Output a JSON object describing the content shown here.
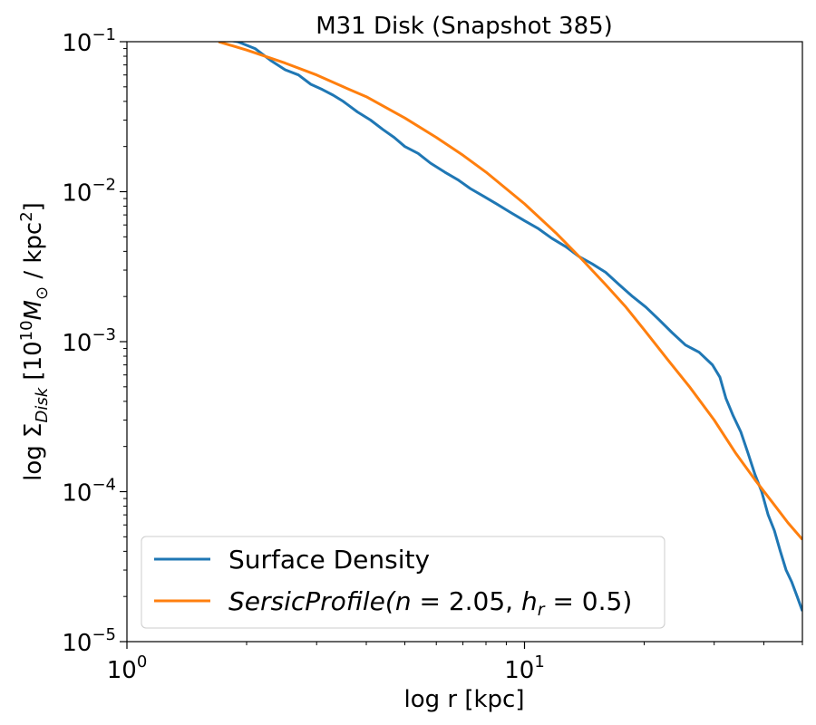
{
  "chart_data": {
    "type": "line",
    "title": "M31 Disk (Snapshot 385)",
    "xlabel": "log r [kpc]",
    "ylabel": {
      "base": "log Σ",
      "sub": "Disk",
      "unit_pre": " [10",
      "unit_exp": "10",
      "unit_m": "M",
      "unit_sun": "⊙",
      "unit_post": " / kpc",
      "unit_exp2": "2",
      "unit_end": "]"
    },
    "xscale": "log",
    "yscale": "log",
    "xlim": [
      1,
      50
    ],
    "ylim": [
      1e-05,
      0.1
    ],
    "x_ticks": [
      {
        "value": 1,
        "base": "10",
        "exp": "0"
      },
      {
        "value": 10,
        "base": "10",
        "exp": "1"
      }
    ],
    "y_ticks": [
      {
        "value": 0.1,
        "base": "10",
        "exp": "−1"
      },
      {
        "value": 0.01,
        "base": "10",
        "exp": "−2"
      },
      {
        "value": 0.001,
        "base": "10",
        "exp": "−3"
      },
      {
        "value": 0.0001,
        "base": "10",
        "exp": "−4"
      },
      {
        "value": 1e-05,
        "base": "10",
        "exp": "−5"
      }
    ],
    "grid": false,
    "legend_position": "lower-left",
    "series": [
      {
        "name": "Surface Density",
        "color": "#1f77b4",
        "x": [
          1.7,
          1.9,
          2.1,
          2.3,
          2.5,
          2.7,
          2.9,
          3.1,
          3.3,
          3.5,
          3.8,
          4.1,
          4.4,
          4.7,
          5.0,
          5.4,
          5.8,
          6.3,
          6.8,
          7.3,
          7.9,
          8.5,
          9.2,
          10,
          10.8,
          11.7,
          12.7,
          13.7,
          14.8,
          16,
          17.3,
          18.7,
          20.2,
          21.8,
          23.5,
          25.4,
          27.5,
          29.7,
          31,
          32.1,
          33.5,
          35,
          36.5,
          38,
          39.5,
          41,
          42.5,
          44,
          45.5,
          47,
          48.5,
          50
        ],
        "y": [
          0.105,
          0.1,
          0.09,
          0.075,
          0.065,
          0.06,
          0.052,
          0.048,
          0.044,
          0.04,
          0.034,
          0.03,
          0.026,
          0.023,
          0.02,
          0.018,
          0.0155,
          0.0135,
          0.012,
          0.0105,
          0.0093,
          0.0083,
          0.0073,
          0.0064,
          0.0057,
          0.0049,
          0.0043,
          0.0037,
          0.0033,
          0.0029,
          0.0024,
          0.002,
          0.0017,
          0.0014,
          0.00115,
          0.00095,
          0.00085,
          0.0007,
          0.00058,
          0.00042,
          0.00032,
          0.00025,
          0.00018,
          0.00013,
          0.0001,
          7e-05,
          5.5e-05,
          4e-05,
          3e-05,
          2.5e-05,
          2e-05,
          1.6e-05
        ]
      },
      {
        "name": "SersicProfile(n = 2.05, h_r = 0.5)",
        "color": "#ff7f0e",
        "x": [
          1.7,
          2.0,
          2.5,
          3.0,
          3.5,
          4.0,
          5.0,
          6.0,
          7.0,
          8.0,
          10,
          12,
          14,
          16,
          18,
          20,
          23,
          26,
          30,
          34,
          38,
          42,
          46,
          50
        ],
        "y": [
          0.1,
          0.088,
          0.072,
          0.06,
          0.05,
          0.043,
          0.031,
          0.023,
          0.0175,
          0.0135,
          0.0083,
          0.0053,
          0.0035,
          0.0024,
          0.0017,
          0.0012,
          0.00075,
          0.0005,
          0.0003,
          0.00018,
          0.00012,
          8.5e-05,
          6.2e-05,
          4.8e-05
        ]
      }
    ],
    "legend": [
      {
        "text": "Surface Density"
      },
      {
        "pre": "SersicProfile(",
        "n_label": "n",
        "n_val": " = 2.05, ",
        "h_label": "h",
        "h_sub": "r",
        "h_val": " = 0.5)"
      }
    ]
  }
}
